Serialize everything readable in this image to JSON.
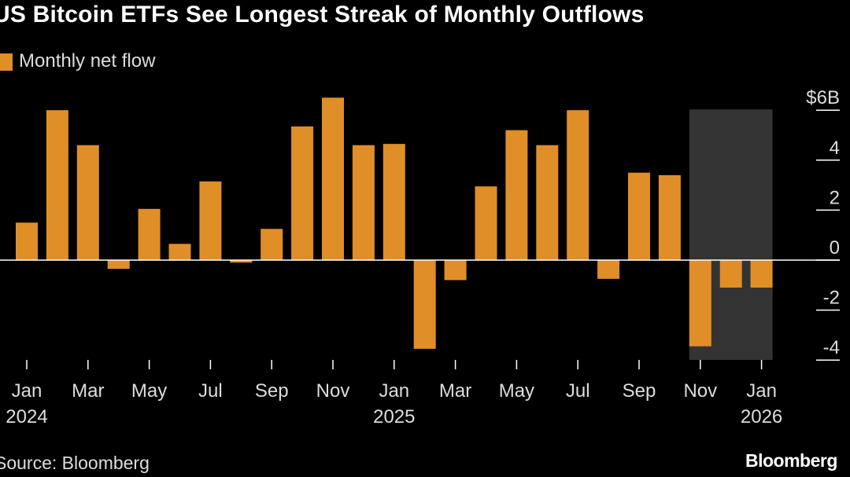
{
  "title": "US Bitcoin ETFs See Longest Streak of Monthly Outflows",
  "legend": "Monthly net flow",
  "source": "Source: Bloomberg",
  "brand": "Bloomberg",
  "colors": {
    "bar": "#e08e27",
    "background": "#000000",
    "highlight": "#333333",
    "text": "#ffffff"
  },
  "chart_data": {
    "type": "bar",
    "categories": [
      "Jan 2024",
      "Feb 2024",
      "Mar 2024",
      "Apr 2024",
      "May 2024",
      "Jun 2024",
      "Jul 2024",
      "Aug 2024",
      "Sep 2024",
      "Oct 2024",
      "Nov 2024",
      "Dec 2024",
      "Jan 2025",
      "Feb 2025",
      "Mar 2025",
      "Apr 2025",
      "May 2025",
      "Jun 2025",
      "Jul 2025",
      "Aug 2025",
      "Sep 2025",
      "Oct 2025",
      "Nov 2025",
      "Dec 2025",
      "Jan 2026"
    ],
    "series": [
      {
        "name": "Monthly net flow",
        "values": [
          1.5,
          6.0,
          4.6,
          -0.35,
          2.05,
          0.65,
          3.15,
          -0.1,
          1.25,
          5.35,
          6.5,
          4.6,
          4.65,
          -3.55,
          -0.8,
          2.95,
          5.2,
          4.6,
          6.0,
          -0.75,
          3.5,
          3.4,
          -3.45,
          -1.1,
          -1.1
        ]
      }
    ],
    "ylim": [
      -4,
      6
    ],
    "ylabel": "",
    "xlabel": "",
    "y_ticks": [
      {
        "value": 6,
        "label": "$6B"
      },
      {
        "value": 4,
        "label": "4"
      },
      {
        "value": 2,
        "label": "2"
      },
      {
        "value": 0,
        "label": "0"
      },
      {
        "value": -2,
        "label": "-2"
      },
      {
        "value": -4,
        "label": "-4"
      }
    ],
    "x_ticks": [
      {
        "index": 0,
        "month": "Jan",
        "year": "2024"
      },
      {
        "index": 2,
        "month": "Mar",
        "year": ""
      },
      {
        "index": 4,
        "month": "May",
        "year": ""
      },
      {
        "index": 6,
        "month": "Jul",
        "year": ""
      },
      {
        "index": 8,
        "month": "Sep",
        "year": ""
      },
      {
        "index": 10,
        "month": "Nov",
        "year": ""
      },
      {
        "index": 12,
        "month": "Jan",
        "year": "2025"
      },
      {
        "index": 14,
        "month": "Mar",
        "year": ""
      },
      {
        "index": 16,
        "month": "May",
        "year": ""
      },
      {
        "index": 18,
        "month": "Jul",
        "year": ""
      },
      {
        "index": 20,
        "month": "Sep",
        "year": ""
      },
      {
        "index": 22,
        "month": "Nov",
        "year": ""
      },
      {
        "index": 24,
        "month": "Jan",
        "year": "2026"
      }
    ],
    "highlight_range": {
      "start_index": 22,
      "end_index": 24
    },
    "y_axis_position": "right",
    "legend_position": "top-left",
    "grid": false
  }
}
